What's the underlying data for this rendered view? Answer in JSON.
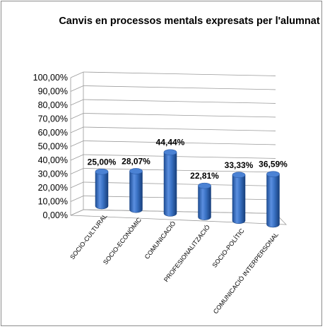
{
  "chart_data": {
    "type": "bar",
    "title": "Canvis en processos mentals expresats per l'alumnat",
    "categories": [
      "SOCIO-CULTURAL",
      "SOCIO-ECONÒMIC",
      "COMUNICACIÓ",
      "PROFESIONALITZACIÓ",
      "SOCIO-POLÍTIC",
      "COMUNICACIÓ INTERPERSONAL"
    ],
    "values": [
      25.0,
      28.07,
      44.44,
      22.81,
      33.33,
      36.59
    ],
    "data_labels": [
      "25,00%",
      "28,07%",
      "44,44%",
      "22,81%",
      "33,33%",
      "36,59%"
    ],
    "ylim": [
      0,
      100
    ],
    "y_ticks": [
      "0,00%",
      "10,00%",
      "20,00%",
      "30,00%",
      "40,00%",
      "50,00%",
      "60,00%",
      "70,00%",
      "80,00%",
      "90,00%",
      "100,00%"
    ],
    "grid": true,
    "legend": "none",
    "bar_color": "#3a72c4"
  }
}
